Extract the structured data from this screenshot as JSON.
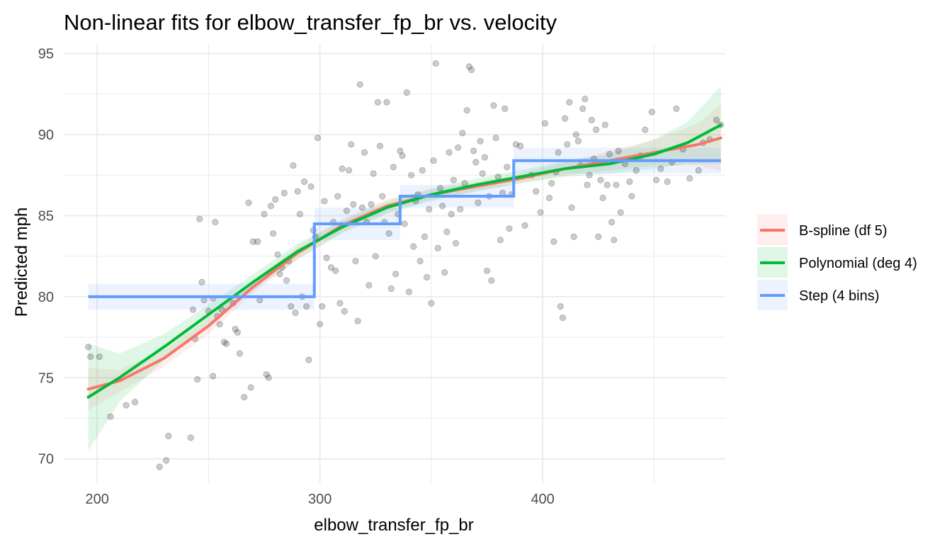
{
  "chart_data": {
    "type": "scatter",
    "title": "Non-linear fits for elbow_transfer_fp_br vs. velocity",
    "xlabel": "elbow_transfer_fp_br",
    "ylabel": "Predicted mph",
    "xlim": [
      185,
      482
    ],
    "ylim": [
      68.5,
      95.6
    ],
    "x_ticks": [
      200,
      300,
      400
    ],
    "y_ticks": [
      70,
      75,
      80,
      85,
      90,
      95
    ],
    "grid": true,
    "legend_position": "right",
    "colors": {
      "points": "#000000",
      "bspline": "#F8766D",
      "polynomial": "#00BA38",
      "step": "#619CFF",
      "gridline": "#ebebeb"
    },
    "points": [
      [
        196,
        76.9
      ],
      [
        197,
        76.3
      ],
      [
        201,
        76.3
      ],
      [
        206,
        72.6
      ],
      [
        213,
        73.3
      ],
      [
        217,
        73.5
      ],
      [
        228,
        69.5
      ],
      [
        231,
        69.9
      ],
      [
        232,
        71.4
      ],
      [
        242,
        71.3
      ],
      [
        243,
        79.2
      ],
      [
        244,
        77.4
      ],
      [
        245,
        74.9
      ],
      [
        246,
        84.8
      ],
      [
        247,
        80.9
      ],
      [
        248,
        79.8
      ],
      [
        250,
        79.1
      ],
      [
        252,
        79.9
      ],
      [
        252,
        75.1
      ],
      [
        253,
        84.6
      ],
      [
        254,
        78.8
      ],
      [
        255,
        78.3
      ],
      [
        256,
        79.2
      ],
      [
        257,
        77.2
      ],
      [
        258,
        77.1
      ],
      [
        261,
        79.6
      ],
      [
        262,
        78.0
      ],
      [
        263,
        77.8
      ],
      [
        264,
        76.5
      ],
      [
        266,
        73.8
      ],
      [
        268,
        85.8
      ],
      [
        269,
        74.4
      ],
      [
        270,
        83.4
      ],
      [
        272,
        83.4
      ],
      [
        273,
        79.8
      ],
      [
        275,
        85.1
      ],
      [
        276,
        75.2
      ],
      [
        277,
        75.0
      ],
      [
        278,
        85.6
      ],
      [
        279,
        83.9
      ],
      [
        280,
        86.0
      ],
      [
        281,
        82.6
      ],
      [
        282,
        81.4
      ],
      [
        283,
        81.8
      ],
      [
        284,
        86.4
      ],
      [
        285,
        81.0
      ],
      [
        286,
        82.2
      ],
      [
        287,
        79.4
      ],
      [
        288,
        88.1
      ],
      [
        289,
        79.0
      ],
      [
        290,
        86.5
      ],
      [
        291,
        85.1
      ],
      [
        292,
        80.0
      ],
      [
        293,
        87.1
      ],
      [
        294,
        79.4
      ],
      [
        295,
        76.1
      ],
      [
        296,
        86.8
      ],
      [
        297,
        84.1
      ],
      [
        298,
        83.7
      ],
      [
        299,
        89.8
      ],
      [
        300,
        78.3
      ],
      [
        301,
        79.4
      ],
      [
        302,
        85.9
      ],
      [
        303,
        82.4
      ],
      [
        305,
        81.8
      ],
      [
        306,
        84.6
      ],
      [
        307,
        81.6
      ],
      [
        308,
        86.2
      ],
      [
        309,
        79.6
      ],
      [
        310,
        87.9
      ],
      [
        311,
        79.1
      ],
      [
        312,
        85.3
      ],
      [
        313,
        87.8
      ],
      [
        314,
        89.4
      ],
      [
        315,
        85.7
      ],
      [
        316,
        82.2
      ],
      [
        317,
        78.5
      ],
      [
        318,
        93.1
      ],
      [
        319,
        85.5
      ],
      [
        320,
        88.9
      ],
      [
        321,
        84.6
      ],
      [
        322,
        80.7
      ],
      [
        323,
        85.7
      ],
      [
        324,
        87.6
      ],
      [
        325,
        82.5
      ],
      [
        326,
        92.0
      ],
      [
        327,
        89.3
      ],
      [
        328,
        86.2
      ],
      [
        329,
        84.6
      ],
      [
        330,
        92.0
      ],
      [
        331,
        83.9
      ],
      [
        332,
        80.5
      ],
      [
        333,
        88.0
      ],
      [
        334,
        81.4
      ],
      [
        335,
        85.1
      ],
      [
        336,
        89.0
      ],
      [
        337,
        88.7
      ],
      [
        338,
        84.5
      ],
      [
        339,
        92.6
      ],
      [
        340,
        80.3
      ],
      [
        341,
        87.5
      ],
      [
        342,
        83.1
      ],
      [
        343,
        85.9
      ],
      [
        344,
        86.3
      ],
      [
        345,
        82.2
      ],
      [
        346,
        87.8
      ],
      [
        347,
        83.7
      ],
      [
        348,
        81.2
      ],
      [
        349,
        85.4
      ],
      [
        350,
        79.6
      ],
      [
        351,
        88.4
      ],
      [
        352,
        94.4
      ],
      [
        353,
        83.0
      ],
      [
        354,
        86.7
      ],
      [
        355,
        85.6
      ],
      [
        356,
        81.5
      ],
      [
        357,
        84.0
      ],
      [
        358,
        88.9
      ],
      [
        359,
        85.1
      ],
      [
        360,
        87.2
      ],
      [
        361,
        83.3
      ],
      [
        362,
        89.2
      ],
      [
        363,
        85.4
      ],
      [
        364,
        90.1
      ],
      [
        365,
        87.0
      ],
      [
        366,
        91.5
      ],
      [
        367,
        94.2
      ],
      [
        368,
        94.0
      ],
      [
        369,
        89.0
      ],
      [
        370,
        88.3
      ],
      [
        371,
        85.8
      ],
      [
        372,
        89.6
      ],
      [
        373,
        87.6
      ],
      [
        374,
        88.6
      ],
      [
        375,
        81.6
      ],
      [
        376,
        86.2
      ],
      [
        377,
        81.0
      ],
      [
        378,
        91.8
      ],
      [
        379,
        89.8
      ],
      [
        380,
        87.4
      ],
      [
        381,
        83.5
      ],
      [
        382,
        86.4
      ],
      [
        383,
        91.6
      ],
      [
        384,
        88.0
      ],
      [
        385,
        84.2
      ],
      [
        386,
        86.3
      ],
      [
        388,
        89.4
      ],
      [
        390,
        89.3
      ],
      [
        392,
        84.4
      ],
      [
        395,
        87.5
      ],
      [
        397,
        86.5
      ],
      [
        399,
        85.2
      ],
      [
        401,
        90.7
      ],
      [
        403,
        86.1
      ],
      [
        404,
        87.0
      ],
      [
        405,
        83.4
      ],
      [
        406,
        87.7
      ],
      [
        407,
        88.9
      ],
      [
        408,
        79.4
      ],
      [
        409,
        78.7
      ],
      [
        410,
        91.0
      ],
      [
        411,
        89.4
      ],
      [
        412,
        92.0
      ],
      [
        413,
        85.5
      ],
      [
        414,
        83.7
      ],
      [
        415,
        90.0
      ],
      [
        416,
        89.6
      ],
      [
        417,
        88.1
      ],
      [
        418,
        91.6
      ],
      [
        419,
        92.2
      ],
      [
        420,
        86.9
      ],
      [
        421,
        87.5
      ],
      [
        422,
        90.9
      ],
      [
        423,
        88.5
      ],
      [
        424,
        90.3
      ],
      [
        425,
        83.7
      ],
      [
        426,
        87.2
      ],
      [
        427,
        86.1
      ],
      [
        428,
        90.6
      ],
      [
        429,
        86.9
      ],
      [
        430,
        88.8
      ],
      [
        431,
        84.6
      ],
      [
        432,
        83.5
      ],
      [
        433,
        86.9
      ],
      [
        434,
        89.0
      ],
      [
        435,
        85.2
      ],
      [
        437,
        88.2
      ],
      [
        439,
        87.1
      ],
      [
        440,
        86.2
      ],
      [
        442,
        87.8
      ],
      [
        444,
        88.7
      ],
      [
        446,
        90.3
      ],
      [
        449,
        91.4
      ],
      [
        451,
        87.2
      ],
      [
        453,
        87.9
      ],
      [
        456,
        87.1
      ],
      [
        458,
        88.3
      ],
      [
        460,
        91.6
      ],
      [
        463,
        89.1
      ],
      [
        466,
        87.3
      ],
      [
        470,
        87.8
      ],
      [
        472,
        89.5
      ],
      [
        475,
        89.7
      ],
      [
        478,
        90.9
      ],
      [
        480,
        90.6
      ]
    ],
    "series": [
      {
        "name": "B-spline (df 5)",
        "x": [
          196,
          210,
          230,
          250,
          270,
          290,
          310,
          330,
          350,
          370,
          390,
          410,
          430,
          450,
          470,
          480
        ],
        "y": [
          74.3,
          74.8,
          76.2,
          78.2,
          80.6,
          82.7,
          84.4,
          85.6,
          86.3,
          86.8,
          87.3,
          87.9,
          88.4,
          88.9,
          89.4,
          89.8
        ],
        "lower": [
          73.0,
          74.1,
          75.7,
          77.7,
          80.2,
          82.3,
          84.0,
          85.2,
          86.0,
          86.5,
          87.0,
          87.5,
          87.8,
          88.1,
          88.1,
          87.7
        ],
        "upper": [
          75.6,
          75.5,
          76.7,
          78.7,
          81.0,
          83.1,
          84.8,
          86.0,
          86.6,
          87.1,
          87.6,
          88.3,
          89.0,
          89.7,
          90.7,
          91.9
        ]
      },
      {
        "name": "Polynomial (deg 4)",
        "x": [
          196,
          210,
          230,
          250,
          270,
          290,
          310,
          330,
          350,
          370,
          390,
          410,
          430,
          450,
          465,
          480
        ],
        "y": [
          73.8,
          75.0,
          76.9,
          78.9,
          80.9,
          82.8,
          84.3,
          85.5,
          86.3,
          86.9,
          87.4,
          87.9,
          88.2,
          88.8,
          89.5,
          90.6
        ],
        "lower": [
          70.5,
          73.5,
          76.1,
          78.3,
          80.4,
          82.3,
          83.9,
          85.1,
          85.9,
          86.5,
          87.0,
          87.4,
          87.6,
          87.9,
          88.2,
          88.2
        ],
        "upper": [
          77.1,
          76.5,
          77.7,
          79.5,
          81.4,
          83.3,
          84.7,
          85.9,
          86.7,
          87.3,
          87.8,
          88.4,
          88.8,
          89.7,
          90.8,
          93.0
        ]
      },
      {
        "name": "Step (4 bins)",
        "bins": [
          {
            "x0": 196,
            "x1": 297.5,
            "y": 80.0,
            "lower": 79.2,
            "upper": 80.8
          },
          {
            "x0": 297.5,
            "x1": 336,
            "y": 84.5,
            "lower": 83.5,
            "upper": 85.5
          },
          {
            "x0": 336,
            "x1": 387,
            "y": 86.2,
            "lower": 85.5,
            "upper": 86.9
          },
          {
            "x0": 387,
            "x1": 480,
            "y": 88.4,
            "lower": 87.6,
            "upper": 89.2
          }
        ]
      }
    ]
  }
}
